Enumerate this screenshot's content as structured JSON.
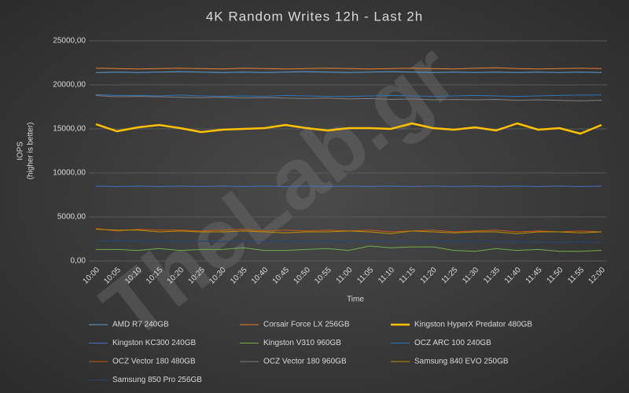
{
  "chart_data": {
    "type": "line",
    "title": "4K Random Writes 12h - Last 2h",
    "watermark": "TheLab.gr",
    "xlabel": "Time",
    "ylabel": "IOPS",
    "ylabel_sub": "(higher is better)",
    "categories": [
      "10:00",
      "10:05",
      "10:10",
      "10:15",
      "10:20",
      "10:25",
      "10:30",
      "10:35",
      "10:40",
      "10:45",
      "10:50",
      "10:55",
      "11:00",
      "11:05",
      "11:10",
      "11:15",
      "11:20",
      "11:25",
      "11:30",
      "11:35",
      "11:40",
      "11:45",
      "11:50",
      "11:55",
      "12:00"
    ],
    "ylim": [
      0,
      25000
    ],
    "yticks": [
      {
        "value": 0,
        "label": "0,00"
      },
      {
        "value": 5000,
        "label": "5000,00"
      },
      {
        "value": 10000,
        "label": "10000,00"
      },
      {
        "value": 15000,
        "label": "15000,00"
      },
      {
        "value": 20000,
        "label": "20000,00"
      },
      {
        "value": 25000,
        "label": "25000,00"
      }
    ],
    "grid": true,
    "legend": "bottom",
    "series": [
      {
        "name": "AMD R7 240GB",
        "color": "#5b9bd5",
        "width": 1,
        "values": [
          21400,
          21450,
          21400,
          21450,
          21500,
          21450,
          21400,
          21450,
          21400,
          21450,
          21500,
          21450,
          21400,
          21450,
          21500,
          21450,
          21400,
          21450,
          21400,
          21450,
          21400,
          21450,
          21400,
          21450,
          21400
        ]
      },
      {
        "name": "Corsair Force LX 256GB",
        "color": "#ed7d31",
        "width": 1,
        "values": [
          21900,
          21850,
          21800,
          21850,
          21900,
          21850,
          21800,
          21900,
          21850,
          21800,
          21850,
          21900,
          21850,
          21800,
          21850,
          21900,
          21850,
          21800,
          21900,
          21950,
          21850,
          21800,
          21850,
          21900,
          21850
        ]
      },
      {
        "name": "Kingston HyperX Predator 480GB",
        "color": "#ffc000",
        "width": 2.5,
        "values": [
          15536,
          14732,
          15179,
          15446,
          15089,
          14643,
          14911,
          15000,
          15089,
          15446,
          15089,
          14821,
          15089,
          15089,
          15000,
          15625,
          15089,
          14911,
          15179,
          14821,
          15625,
          14911,
          15089,
          14464,
          15446
        ]
      },
      {
        "name": "Kingston KC300 240GB",
        "color": "#4472c4",
        "width": 1,
        "values": [
          8500,
          8450,
          8500,
          8450,
          8500,
          8450,
          8500,
          8450,
          8500,
          8450,
          8500,
          8450,
          8500,
          8450,
          8500,
          8450,
          8500,
          8450,
          8500,
          8450,
          8500,
          8450,
          8500,
          8450,
          8500
        ]
      },
      {
        "name": "Kingston V310 960GB",
        "color": "#70ad47",
        "width": 1,
        "values": [
          1300,
          1300,
          1200,
          1400,
          1200,
          1300,
          1300,
          1500,
          1200,
          1200,
          1300,
          1400,
          1200,
          1700,
          1500,
          1600,
          1600,
          1200,
          1100,
          1400,
          1200,
          1300,
          1100,
          1100,
          1200
        ]
      },
      {
        "name": "OCZ ARC 100 240GB",
        "color": "#2e75b6",
        "width": 1,
        "values": [
          18900,
          18800,
          18800,
          18750,
          18850,
          18750,
          18700,
          18750,
          18700,
          18800,
          18750,
          18700,
          18700,
          18750,
          18800,
          18750,
          18700,
          18750,
          18800,
          18750,
          18700,
          18750,
          18800,
          18850,
          18850
        ]
      },
      {
        "name": "OCZ Vector 180 480GB",
        "color": "#c55a11",
        "width": 1,
        "values": [
          3700,
          3400,
          3600,
          3500,
          3500,
          3400,
          3500,
          3600,
          3400,
          3500,
          3400,
          3500,
          3400,
          3500,
          3300,
          3400,
          3500,
          3300,
          3400,
          3500,
          3300,
          3400,
          3300,
          3400,
          3300
        ]
      },
      {
        "name": "OCZ Vector 180 960GB",
        "color": "#7f7f7f",
        "width": 1,
        "values": [
          18800,
          18650,
          18700,
          18650,
          18600,
          18550,
          18600,
          18500,
          18550,
          18500,
          18450,
          18500,
          18400,
          18450,
          18350,
          18400,
          18300,
          18350,
          18300,
          18350,
          18250,
          18300,
          18250,
          18200,
          18250
        ]
      },
      {
        "name": "Samsung 840 EVO 250GB",
        "color": "#bf9000",
        "width": 1,
        "values": [
          3600,
          3500,
          3500,
          3300,
          3400,
          3300,
          3300,
          3400,
          3300,
          3200,
          3300,
          3300,
          3400,
          3300,
          3100,
          3400,
          3300,
          3200,
          3300,
          3300,
          3100,
          3300,
          3300,
          3200,
          3300
        ]
      },
      {
        "name": "Samsung 850 Pro 256GB",
        "color": "#264478",
        "width": 1,
        "values": [
          2300,
          2250,
          2300,
          2250,
          2200,
          2250,
          2200,
          2250,
          2200,
          2200,
          2250,
          2200,
          2200,
          2250,
          2200,
          2150,
          2200,
          2250,
          2200,
          2150,
          2200,
          2150,
          2100,
          2150,
          2100
        ]
      }
    ]
  }
}
